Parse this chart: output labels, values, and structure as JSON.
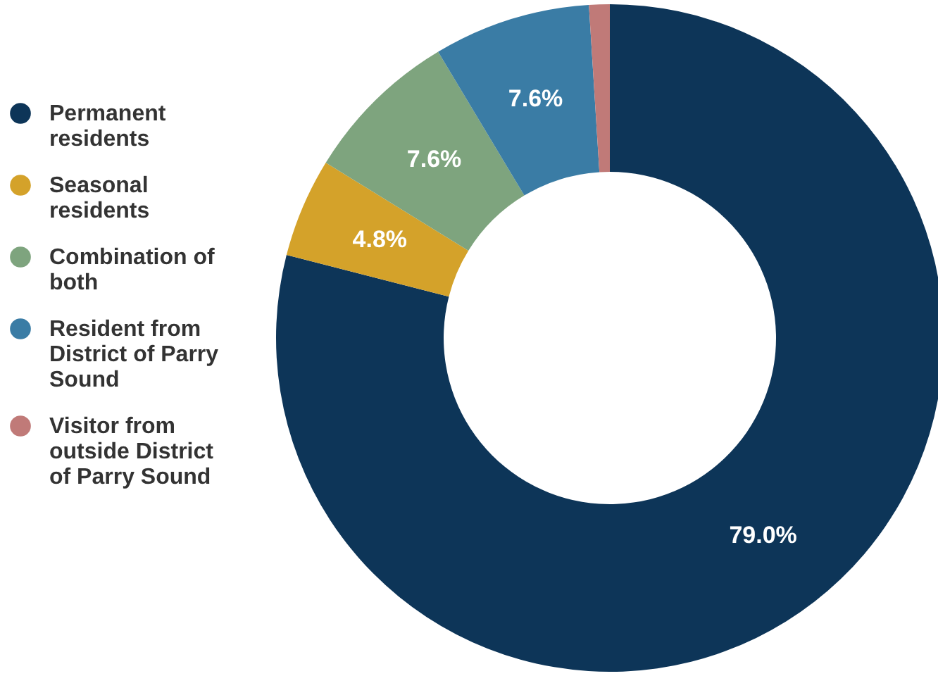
{
  "chart_data": {
    "type": "donut",
    "categories": [
      "Permanent residents",
      "Seasonal residents",
      "Combination of both",
      "Resident from District of Parry Sound",
      "Visitor from outside District of Parry Sound"
    ],
    "values": [
      79.0,
      4.8,
      7.6,
      7.6,
      1.0
    ],
    "colors": [
      "#0d3558",
      "#d4a22a",
      "#7ea47e",
      "#3a7ca5",
      "#c07a78"
    ],
    "value_labels": [
      "79.0%",
      "4.8%",
      "7.6%",
      "7.6%",
      null
    ],
    "legend": "left"
  }
}
